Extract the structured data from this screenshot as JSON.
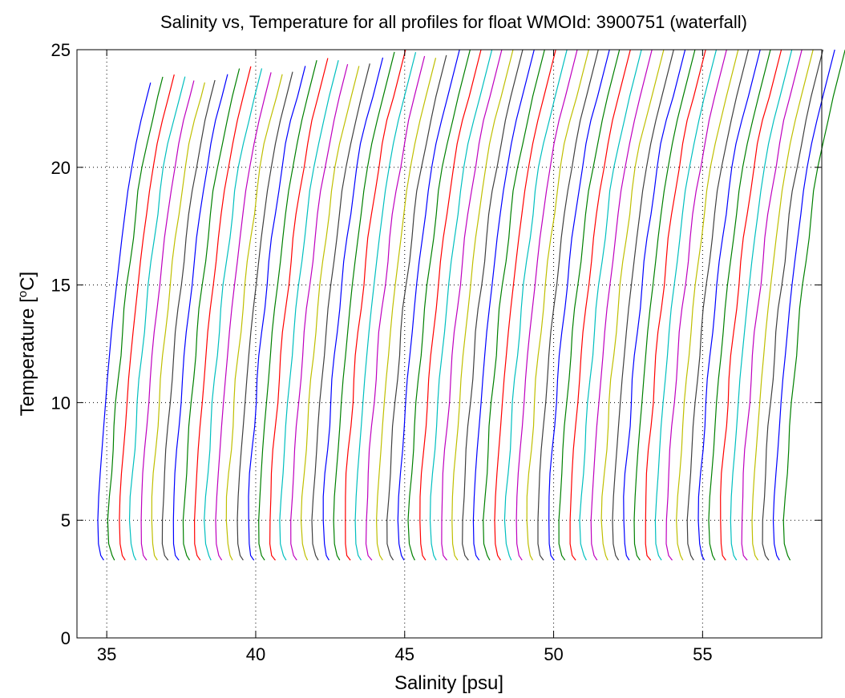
{
  "chart_data": {
    "type": "line",
    "title": "Salinity vs, Temperature for all profiles for float WMOId: 3900751 (waterfall)",
    "xlabel": "Salinity [psu]",
    "ylabel_pre": "Temperature [",
    "ylabel_sup": "o",
    "ylabel_post": "C]",
    "xlim": [
      34.0,
      59.0
    ],
    "ylim": [
      0,
      25
    ],
    "xticks": [
      35,
      40,
      45,
      50,
      55
    ],
    "yticks": [
      0,
      5,
      10,
      15,
      20,
      25
    ],
    "grid": true,
    "legend": "none",
    "colors": [
      "#0000ff",
      "#008000",
      "#ff0000",
      "#00bfbf",
      "#bf00bf",
      "#bfbf00",
      "#404040"
    ],
    "profile_count": 65,
    "profile_offset_psu": 0.36,
    "first_profile_surface_temp": 23.6,
    "base_profile": {
      "temperature": [
        3.3,
        3.5,
        4.0,
        5.0,
        6.0,
        7.0,
        8.0,
        9.0,
        10.0,
        11.0,
        12.0,
        13.0,
        14.0,
        15.0,
        16.0,
        17.0,
        18.0,
        19.0,
        20.0,
        21.0,
        22.0,
        23.0
      ],
      "salinity": [
        34.9,
        34.8,
        34.72,
        34.7,
        34.73,
        34.78,
        34.84,
        34.9,
        34.96,
        35.02,
        35.09,
        35.16,
        35.24,
        35.33,
        35.42,
        35.51,
        35.61,
        35.71,
        35.84,
        35.98,
        36.15,
        36.35
      ]
    }
  }
}
